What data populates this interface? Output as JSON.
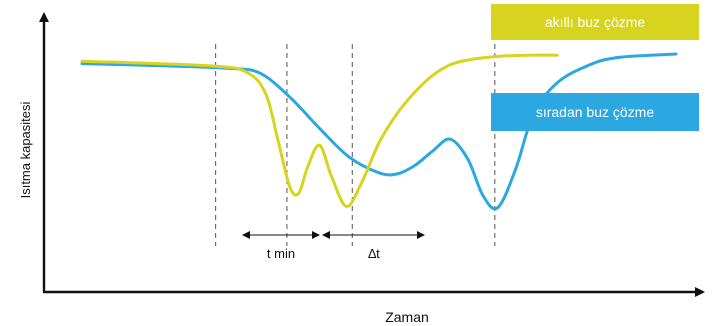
{
  "chart_data": {
    "type": "line",
    "title": "",
    "xlabel": "Zaman",
    "ylabel": "Isıtma kapasitesi",
    "xlim": [
      0,
      10
    ],
    "ylim": [
      0,
      10
    ],
    "axis_ticks": false,
    "grid": false,
    "legend_position": "top-right",
    "colors": {
      "smart": "#d6d41e",
      "normal": "#2ba8e0"
    },
    "series": [
      {
        "name": "akıllı buz çözme",
        "color_key": "smart",
        "x": [
          0,
          2.2,
          2.8,
          3.1,
          3.3,
          3.5,
          3.65,
          3.8,
          4.0,
          4.2,
          4.45,
          4.7,
          5.0,
          5.3,
          5.6,
          5.9,
          6.2,
          6.5,
          7.0,
          7.5,
          8.0
        ],
        "y": [
          8.7,
          8.5,
          8.2,
          7.3,
          5.4,
          3.45,
          3.2,
          4.3,
          5.2,
          3.9,
          2.65,
          3.6,
          5.3,
          6.5,
          7.4,
          8.1,
          8.55,
          8.75,
          8.9,
          8.95,
          8.95
        ]
      },
      {
        "name": "sıradan buz çözme",
        "color_key": "normal",
        "x": [
          0,
          1.5,
          2.5,
          3.0,
          3.5,
          4.0,
          4.5,
          5.0,
          5.3,
          5.6,
          5.9,
          6.2,
          6.5,
          6.75,
          7.0,
          7.3,
          7.6,
          8.0,
          8.5,
          9.0,
          10.0
        ],
        "y": [
          8.6,
          8.5,
          8.4,
          8.2,
          7.2,
          5.9,
          4.7,
          4.05,
          4.0,
          4.35,
          4.95,
          5.45,
          4.6,
          3.1,
          2.6,
          4.2,
          6.5,
          7.8,
          8.5,
          8.85,
          9.0
        ]
      }
    ],
    "guides": [
      2.25,
      3.45,
      4.55,
      6.95
    ],
    "annotations": [
      "t min",
      "∆t"
    ]
  }
}
